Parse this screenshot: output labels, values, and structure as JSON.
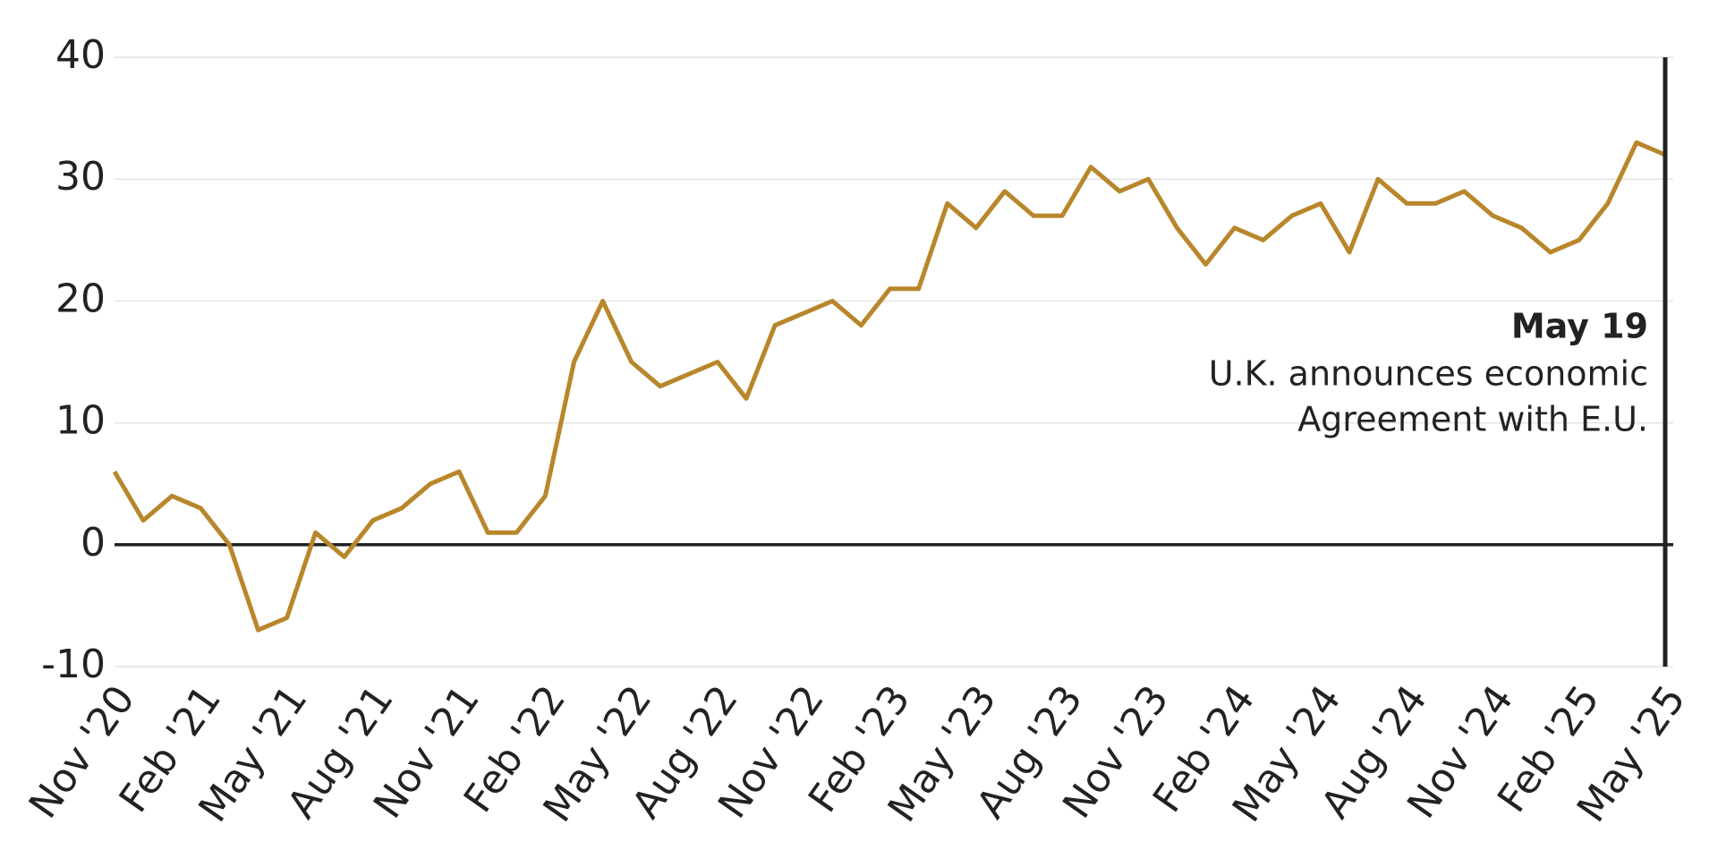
{
  "chart_data": {
    "type": "line",
    "x": [
      "2020-11",
      "2020-12",
      "2021-01",
      "2021-02",
      "2021-03",
      "2021-04",
      "2021-05",
      "2021-06",
      "2021-07",
      "2021-08",
      "2021-09",
      "2021-10",
      "2021-11",
      "2021-12",
      "2022-01",
      "2022-02",
      "2022-03",
      "2022-04",
      "2022-05",
      "2022-06",
      "2022-07",
      "2022-08",
      "2022-09",
      "2022-10",
      "2022-11",
      "2022-12",
      "2023-01",
      "2023-02",
      "2023-03",
      "2023-04",
      "2023-05",
      "2023-06",
      "2023-07",
      "2023-08",
      "2023-09",
      "2023-10",
      "2023-11",
      "2023-12",
      "2024-01",
      "2024-02",
      "2024-03",
      "2024-04",
      "2024-05",
      "2024-06",
      "2024-07",
      "2024-08",
      "2024-09",
      "2024-10",
      "2024-11",
      "2024-12",
      "2025-01",
      "2025-02",
      "2025-03",
      "2025-04",
      "2025-05"
    ],
    "series": [
      {
        "color": "#b8862b",
        "values": [
          6,
          2,
          4,
          3,
          0,
          -7,
          -6,
          1,
          -1,
          2,
          3,
          5,
          6,
          1,
          1,
          4,
          15,
          20,
          15,
          13,
          14,
          15,
          12,
          18,
          19,
          20,
          18,
          21,
          21,
          28,
          26,
          29,
          27,
          27,
          31,
          29,
          30,
          26,
          23,
          26,
          25,
          27,
          28,
          24,
          30,
          28,
          28,
          29,
          27,
          26,
          24,
          25,
          28,
          33,
          32
        ]
      }
    ],
    "ylim": [
      -10,
      40
    ],
    "yticks": [
      -10,
      0,
      10,
      20,
      30,
      40
    ],
    "xticks": [
      {
        "value": "2020-11",
        "label": "Nov '20"
      },
      {
        "value": "2021-02",
        "label": "Feb '21"
      },
      {
        "value": "2021-05",
        "label": "May '21"
      },
      {
        "value": "2021-08",
        "label": "Aug '21"
      },
      {
        "value": "2021-11",
        "label": "Nov '21"
      },
      {
        "value": "2022-02",
        "label": "Feb '22"
      },
      {
        "value": "2022-05",
        "label": "May '22"
      },
      {
        "value": "2022-08",
        "label": "Aug '22"
      },
      {
        "value": "2022-11",
        "label": "Nov '22"
      },
      {
        "value": "2023-02",
        "label": "Feb '23"
      },
      {
        "value": "2023-05",
        "label": "May '23"
      },
      {
        "value": "2023-08",
        "label": "Aug '23"
      },
      {
        "value": "2023-11",
        "label": "Nov '23"
      },
      {
        "value": "2024-02",
        "label": "Feb '24"
      },
      {
        "value": "2024-05",
        "label": "May '24"
      },
      {
        "value": "2024-08",
        "label": "Aug '24"
      },
      {
        "value": "2024-11",
        "label": "Nov '24"
      },
      {
        "value": "2025-02",
        "label": "Feb '25"
      },
      {
        "value": "2025-05",
        "label": "May '25"
      }
    ],
    "grid": true,
    "annotation": {
      "x": "2025-05",
      "title": "May 19",
      "lines": [
        "U.K. announces economic",
        "Agreement with E.U."
      ]
    }
  }
}
